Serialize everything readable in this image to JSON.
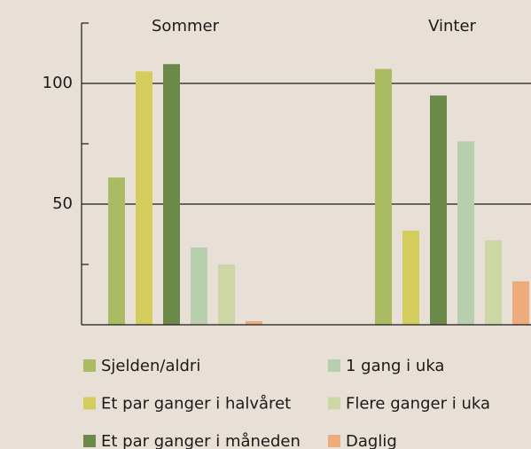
{
  "chart_data": {
    "type": "bar",
    "categories": [
      "Sommer",
      "Vinter"
    ],
    "series": [
      {
        "name": "Sjelden/aldri",
        "color": "#a9bc64",
        "values": [
          61,
          106
        ]
      },
      {
        "name": "Et par ganger i halvåret",
        "color": "#d4cd5e",
        "values": [
          105,
          39
        ]
      },
      {
        "name": "Et par ganger i måneden",
        "color": "#6b8a4a",
        "values": [
          108,
          95
        ]
      },
      {
        "name": "1 gang i uka",
        "color": "#b8cfae",
        "values": [
          32,
          76
        ]
      },
      {
        "name": "Flere ganger i uka",
        "color": "#cdd6a5",
        "values": [
          25,
          35
        ]
      },
      {
        "name": "Daglig",
        "color": "#eeac7c",
        "values": [
          1.5,
          18
        ]
      }
    ],
    "ylim": [
      0,
      125
    ],
    "yticks": [
      50,
      100
    ],
    "minor_yticks": [
      25,
      75,
      125
    ],
    "grid": true
  }
}
